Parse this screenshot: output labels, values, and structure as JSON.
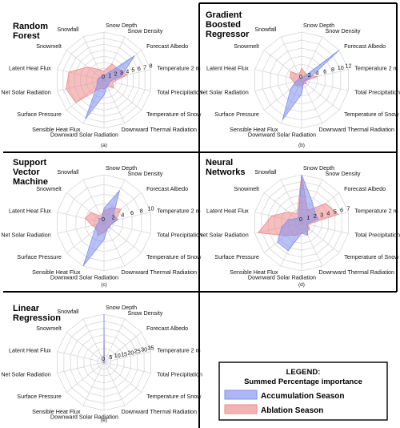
{
  "legend": {
    "title": "LEGEND:",
    "subtitle": "Summed Percentage importance",
    "entries": [
      {
        "label": "Accumulation Season",
        "color": "#7f8fef"
      },
      {
        "label": "Ablation Season",
        "color": "#ee8a8a"
      }
    ]
  },
  "colors": {
    "accumulation": "#7f8fef",
    "ablation": "#ee8a8a"
  },
  "chart_data": [
    {
      "type": "radar",
      "panel": "(a)",
      "title_lines": [
        "Random",
        "Forest"
      ],
      "axes": [
        "Snow Depth",
        "Snow Density",
        "Forecast Albedo",
        "Temperature 2 m",
        "Total Precipitation",
        "Temperature of Snow",
        "Downward Thermal Radiation",
        "Downward Solar Radiation",
        "Sensible Heat Flux",
        "Surface Pressure",
        "Net Solar Radiation",
        "Latent Heat Flux",
        "Snowmelt",
        "Snowfall"
      ],
      "r_ticks": [
        "0",
        "1",
        "2",
        "3",
        "4",
        "5",
        "6",
        "7",
        "8"
      ],
      "r_max": 8,
      "series": [
        {
          "name": "Accumulation Season",
          "values": [
            0.8,
            1.2,
            6.5,
            3.0,
            1.0,
            1.0,
            1.2,
            2.5,
            7.2,
            1.5,
            1.2,
            1.0,
            0.8,
            0.6
          ]
        },
        {
          "name": "Ablation Season",
          "values": [
            1.5,
            3.0,
            3.0,
            4.0,
            1.5,
            2.0,
            1.2,
            1.5,
            1.5,
            6.0,
            6.5,
            6.0,
            3.5,
            2.0
          ]
        }
      ]
    },
    {
      "type": "radar",
      "panel": "(b)",
      "title_lines": [
        "Gradient",
        "Boosted",
        "Regressor"
      ],
      "axes": [
        "Snow Depth",
        "Snow Density",
        "Forecast Albedo",
        "Temperature 2 m",
        "Total Precipitation",
        "Temperature of Snow",
        "Downward Thermal Radiation",
        "Downward Solar Radiation",
        "Sensible Heat Flux",
        "Surface Pressure",
        "Net Solar Radiation",
        "Latent Heat Flux",
        "Snowmelt",
        "Snowfall"
      ],
      "r_ticks": [
        "0",
        "2",
        "4",
        "6",
        "8",
        "10",
        "12"
      ],
      "r_max": 12,
      "series": [
        {
          "name": "Accumulation Season",
          "values": [
            0.6,
            0.8,
            12.0,
            2.0,
            0.7,
            0.8,
            1.0,
            3.5,
            11.0,
            3.5,
            1.5,
            0.8,
            0.7,
            0.4
          ]
        },
        {
          "name": "Ablation Season",
          "values": [
            3.0,
            2.0,
            2.0,
            4.0,
            1.0,
            1.5,
            1.0,
            1.5,
            1.5,
            2.0,
            2.0,
            3.0,
            3.5,
            1.5
          ]
        }
      ]
    },
    {
      "type": "radar",
      "panel": "(c)",
      "title_lines": [
        "Support",
        "Vector",
        "Machine"
      ],
      "axes": [
        "Snow Depth",
        "Snow Density",
        "Forecast Albedo",
        "Temperature 2 m",
        "Total Precipitation",
        "Temperature of Snow",
        "Downward Thermal Radiation",
        "Downward Solar Radiation",
        "Sensible Heat Flux",
        "Surface Pressure",
        "Net Solar Radiation",
        "Latent Heat Flux",
        "Snowmelt",
        "Snowfall"
      ],
      "r_ticks": [
        "0",
        "2",
        "4",
        "6",
        "8",
        "10"
      ],
      "r_max": 10,
      "series": [
        {
          "name": "Accumulation Season",
          "values": [
            3.0,
            7.5,
            2.5,
            3.0,
            1.5,
            1.5,
            1.5,
            3.5,
            10.0,
            2.5,
            1.5,
            1.0,
            1.5,
            1.0
          ]
        },
        {
          "name": "Ablation Season",
          "values": [
            2.5,
            3.5,
            4.5,
            2.5,
            1.5,
            1.5,
            1.5,
            2.0,
            3.0,
            2.0,
            2.5,
            4.0,
            3.5,
            1.5
          ]
        }
      ]
    },
    {
      "type": "radar",
      "panel": "(d)",
      "title_lines": [
        "Neural",
        "Networks"
      ],
      "axes": [
        "Snow Depth",
        "Snow Density",
        "Forecast Albedo",
        "Temperature 2 m",
        "Total Precipitation",
        "Temperature of Snow",
        "Downward Thermal Radiation",
        "Downward Solar Radiation",
        "Sensible Heat Flux",
        "Surface Pressure",
        "Net Solar Radiation",
        "Latent Heat Flux",
        "Snowmelt",
        "Snowfall"
      ],
      "r_ticks": [
        "0",
        "1",
        "2",
        "3",
        "4",
        "5",
        "6",
        "7"
      ],
      "r_max": 7,
      "series": [
        {
          "name": "Accumulation Season",
          "values": [
            7.0,
            3.5,
            2.5,
            2.5,
            0.8,
            1.2,
            2.0,
            1.5,
            4.5,
            4.5,
            3.0,
            2.0,
            1.0,
            1.0
          ]
        },
        {
          "name": "Ablation Season",
          "values": [
            7.0,
            2.0,
            4.5,
            5.5,
            1.0,
            1.5,
            1.5,
            1.5,
            2.0,
            3.0,
            6.5,
            4.5,
            2.5,
            1.5
          ]
        }
      ]
    },
    {
      "type": "radar",
      "panel": "(e)",
      "title_lines": [
        "Linear",
        "Regression"
      ],
      "axes": [
        "Snow Depth",
        "Snow Density",
        "Forecast Albedo",
        "Temperature 2 m",
        "Total Precipitation",
        "Temperature of Snow",
        "Downward Thermal Radiation",
        "Downward Solar Radiation",
        "Sensible Heat Flux",
        "Surface Pressure",
        "Net Solar Radiation",
        "Latent Heat Flux",
        "Snowmelt",
        "Snowfall"
      ],
      "r_ticks": [
        "0",
        "5",
        "10",
        "15",
        "20",
        "25",
        "30",
        "35"
      ],
      "r_max": 35,
      "series": [
        {
          "name": "Accumulation Season",
          "values": [
            35.0,
            0.5,
            0.3,
            0.3,
            0.2,
            0.3,
            0.3,
            0.3,
            0.3,
            0.5,
            0.3,
            0.3,
            0.3,
            0.3
          ]
        },
        {
          "name": "Ablation Season",
          "values": [
            35.0,
            0.6,
            0.4,
            0.4,
            0.3,
            0.4,
            0.3,
            0.4,
            0.3,
            0.4,
            0.3,
            0.4,
            0.3,
            0.3
          ]
        }
      ]
    }
  ]
}
